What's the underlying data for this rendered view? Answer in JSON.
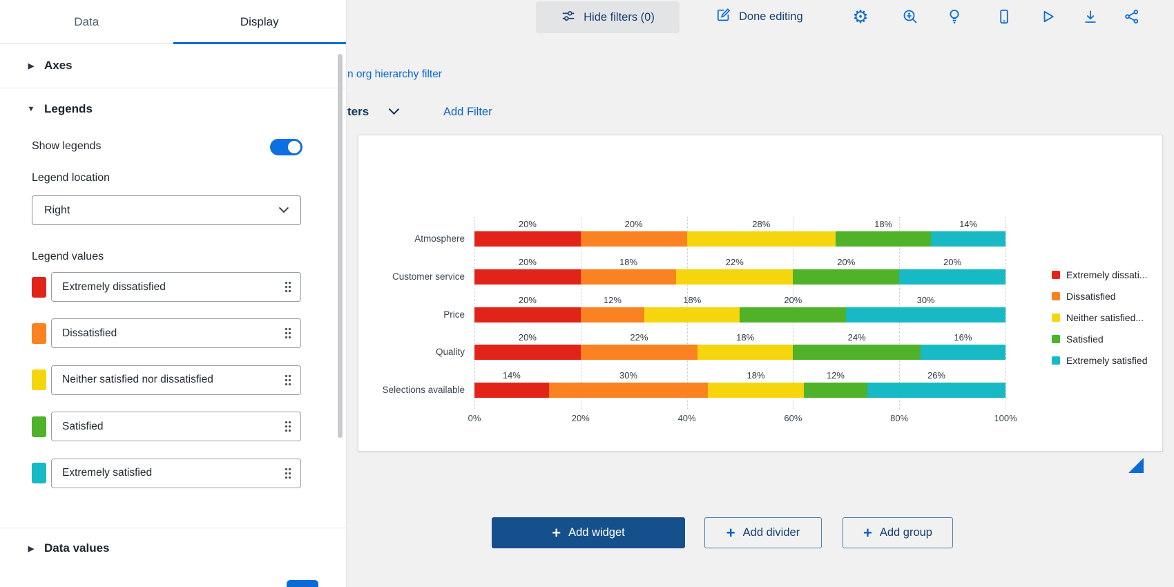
{
  "palette": {
    "primary_blue": "#0b6bd6",
    "dark_navy": "#143e6e",
    "toggle_blue": "#0d6fe0",
    "add_widget_bg": "#15508d"
  },
  "panel": {
    "tabs": [
      {
        "label": "Data",
        "active": false
      },
      {
        "label": "Display",
        "active": true
      }
    ],
    "sections": {
      "axes": {
        "label": "Axes",
        "collapsed": true
      },
      "legends": {
        "label": "Legends",
        "collapsed": false
      },
      "data_values": {
        "label": "Data values",
        "collapsed": true
      }
    },
    "show_legends_label": "Show legends",
    "show_legends_on": true,
    "legend_location_label": "Legend location",
    "legend_location_value": "Right",
    "legend_values_label": "Legend values",
    "legend_values": [
      {
        "label": "Extremely dissatisfied",
        "color": "#e2231a"
      },
      {
        "label": "Dissatisfied",
        "color": "#fa8220"
      },
      {
        "label": "Neither satisfied nor dissatisfied",
        "color": "#f5d60e"
      },
      {
        "label": "Satisfied",
        "color": "#4fb229"
      },
      {
        "label": "Extremely satisfied",
        "color": "#16b9c4"
      }
    ]
  },
  "toolbar": {
    "hide_filters_label": "Hide filters (0)",
    "done_editing_label": "Done editing",
    "icons": [
      "filter-sliders",
      "edit-pencil",
      "settings-gear",
      "accessibility-zoom",
      "ideas-bulb",
      "mobile-preview",
      "play-preview",
      "download-export",
      "share-network"
    ]
  },
  "filters": {
    "org_hierarchy_text": "n org hierarchy filter",
    "filters_cut_label": "ters",
    "add_filter_label": "Add Filter"
  },
  "chart_data": {
    "type": "bar",
    "orientation": "horizontal",
    "stacked": true,
    "categories": [
      "Atmosphere",
      "Customer service",
      "Price",
      "Quality",
      "Selections available"
    ],
    "series": [
      {
        "name": "Extremely dissatisfied",
        "legend_label": "Extremely dissati...",
        "color": "#e2231a",
        "values": [
          20,
          20,
          20,
          20,
          14
        ]
      },
      {
        "name": "Dissatisfied",
        "legend_label": "Dissatisfied",
        "color": "#fa8220",
        "values": [
          20,
          18,
          12,
          22,
          30
        ]
      },
      {
        "name": "Neither satisfied nor dissatisfied",
        "legend_label": "Neither satisfied...",
        "color": "#f5d60e",
        "values": [
          28,
          22,
          18,
          18,
          18
        ]
      },
      {
        "name": "Satisfied",
        "legend_label": "Satisfied",
        "color": "#4fb229",
        "values": [
          18,
          20,
          20,
          24,
          12
        ]
      },
      {
        "name": "Extremely satisfied",
        "legend_label": "Extremely satisfied",
        "color": "#16b9c4",
        "values": [
          14,
          20,
          30,
          16,
          26
        ]
      }
    ],
    "x_ticks": [
      "0%",
      "20%",
      "40%",
      "60%",
      "80%",
      "100%"
    ],
    "xlim": [
      0,
      100
    ],
    "value_suffix": "%",
    "grid": "dotted-vertical",
    "legend_position": "right"
  },
  "footer_buttons": {
    "add_widget": "Add widget",
    "add_divider": "Add divider",
    "add_group": "Add group"
  }
}
